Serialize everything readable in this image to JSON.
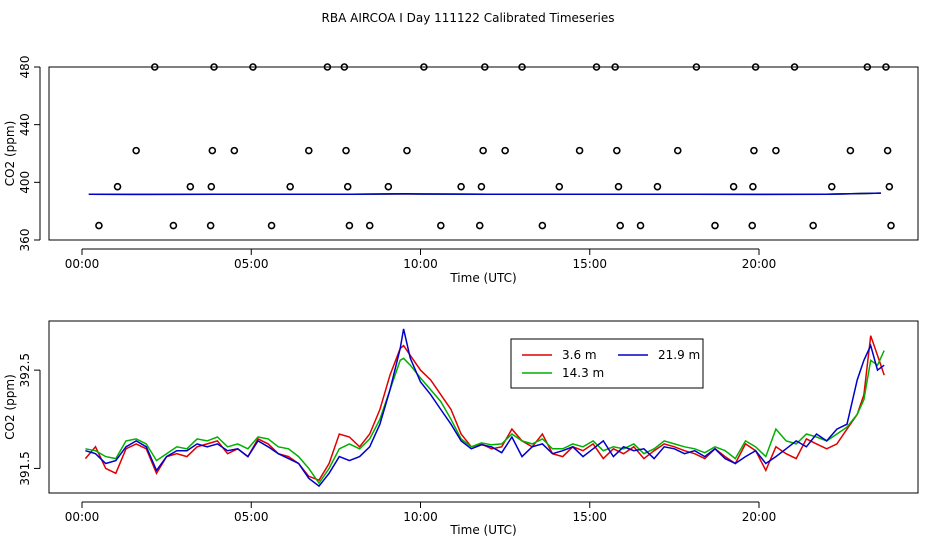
{
  "title": "RBA AIRCOA I  Day 111122  Calibrated Timeseries",
  "colors": {
    "3.6 m": "#e00000",
    "14.3 m": "#00b000",
    "21.9 m": "#0000cc",
    "flags": "#000000"
  },
  "chart_data": [
    {
      "type": "scatter",
      "title": "",
      "xlabel": "Time (UTC)",
      "ylabel": "CO2 (ppm)",
      "xlim": [
        0,
        24
      ],
      "ylim": [
        360,
        480
      ],
      "x_ticks": [
        0,
        5,
        10,
        15,
        20
      ],
      "x_tick_labels": [
        "00:00",
        "05:00",
        "10:00",
        "15:00",
        "20:00"
      ],
      "y_ticks": [
        360,
        400,
        440,
        480
      ],
      "y_tick_labels": [
        "360",
        "400",
        "440",
        "480"
      ],
      "flag_points": [
        [
          0.5,
          370
        ],
        [
          1.05,
          397
        ],
        [
          1.6,
          422
        ],
        [
          2.15,
          480
        ],
        [
          2.7,
          370
        ],
        [
          3.2,
          397
        ],
        [
          3.8,
          370
        ],
        [
          3.82,
          397
        ],
        [
          3.85,
          422
        ],
        [
          3.9,
          480
        ],
        [
          4.5,
          422
        ],
        [
          5.05,
          480
        ],
        [
          5.6,
          370
        ],
        [
          6.15,
          397
        ],
        [
          6.7,
          422
        ],
        [
          7.25,
          480
        ],
        [
          7.75,
          480
        ],
        [
          7.8,
          422
        ],
        [
          7.85,
          397
        ],
        [
          7.9,
          370
        ],
        [
          8.5,
          370
        ],
        [
          9.05,
          397
        ],
        [
          9.6,
          422
        ],
        [
          10.1,
          480
        ],
        [
          10.6,
          370
        ],
        [
          11.2,
          397
        ],
        [
          11.75,
          370
        ],
        [
          11.8,
          397
        ],
        [
          11.85,
          422
        ],
        [
          11.9,
          480
        ],
        [
          12.5,
          422
        ],
        [
          13.0,
          480
        ],
        [
          13.6,
          370
        ],
        [
          14.1,
          397
        ],
        [
          14.7,
          422
        ],
        [
          15.2,
          480
        ],
        [
          15.75,
          480
        ],
        [
          15.8,
          422
        ],
        [
          15.85,
          397
        ],
        [
          15.9,
          370
        ],
        [
          16.5,
          370
        ],
        [
          17.0,
          397
        ],
        [
          17.6,
          422
        ],
        [
          18.15,
          480
        ],
        [
          18.7,
          370
        ],
        [
          19.25,
          397
        ],
        [
          19.8,
          370
        ],
        [
          19.82,
          397
        ],
        [
          19.85,
          422
        ],
        [
          19.9,
          480
        ],
        [
          20.5,
          422
        ],
        [
          21.05,
          480
        ],
        [
          21.6,
          370
        ],
        [
          22.15,
          397
        ],
        [
          22.7,
          422
        ],
        [
          23.2,
          480
        ],
        [
          23.75,
          480
        ],
        [
          23.8,
          422
        ],
        [
          23.85,
          397
        ],
        [
          23.9,
          370
        ]
      ],
      "series": [
        {
          "name": "3.6 m",
          "x": [
            0.2,
            2,
            4,
            6,
            8,
            9.5,
            10,
            12,
            14,
            16,
            18,
            20,
            22,
            23.6
          ],
          "values": [
            391.7,
            391.6,
            391.7,
            391.7,
            391.7,
            392.0,
            391.9,
            391.7,
            391.7,
            391.7,
            391.7,
            391.6,
            391.8,
            392.5
          ]
        },
        {
          "name": "14.3 m",
          "x": [
            0.2,
            2,
            4,
            6,
            8,
            9.5,
            10,
            12,
            14,
            16,
            18,
            20,
            22,
            23.6
          ],
          "values": [
            391.7,
            391.7,
            391.7,
            391.7,
            391.8,
            392.0,
            391.9,
            391.8,
            391.7,
            391.7,
            391.7,
            391.7,
            391.8,
            392.5
          ]
        },
        {
          "name": "21.9 m",
          "x": [
            0.2,
            2,
            4,
            6,
            8,
            9.5,
            10,
            12,
            14,
            16,
            18,
            20,
            22,
            23.6
          ],
          "values": [
            391.7,
            391.6,
            391.7,
            391.7,
            391.7,
            392.1,
            391.9,
            391.7,
            391.7,
            391.7,
            391.7,
            391.6,
            391.8,
            392.5
          ]
        }
      ]
    },
    {
      "type": "line",
      "title": "",
      "xlabel": "Time (UTC)",
      "ylabel": "CO2 (ppm)",
      "xlim": [
        0,
        24
      ],
      "ylim": [
        391.25,
        393.0
      ],
      "x_ticks": [
        0,
        5,
        10,
        15,
        20
      ],
      "x_tick_labels": [
        "00:00",
        "05:00",
        "10:00",
        "15:00",
        "20:00"
      ],
      "y_ticks": [
        391.5,
        392.5
      ],
      "y_tick_labels": [
        "391.5",
        "392.5"
      ],
      "legend": {
        "position": "top-center",
        "entries": [
          "3.6 m",
          "14.3 m",
          "21.9 m"
        ]
      },
      "series": [
        {
          "name": "3.6 m",
          "x": [
            0.1,
            0.4,
            0.7,
            1.0,
            1.3,
            1.6,
            1.9,
            2.2,
            2.5,
            2.8,
            3.1,
            3.4,
            3.7,
            4.0,
            4.3,
            4.6,
            4.9,
            5.2,
            5.5,
            5.8,
            6.1,
            6.4,
            6.7,
            7.0,
            7.3,
            7.6,
            7.9,
            8.2,
            8.5,
            8.8,
            9.1,
            9.4,
            9.5,
            9.7,
            10.0,
            10.3,
            10.6,
            10.9,
            11.2,
            11.5,
            11.8,
            12.1,
            12.4,
            12.7,
            13.0,
            13.3,
            13.6,
            13.9,
            14.2,
            14.5,
            14.8,
            15.1,
            15.4,
            15.7,
            16.0,
            16.3,
            16.6,
            16.9,
            17.2,
            17.5,
            17.8,
            18.1,
            18.4,
            18.7,
            19.0,
            19.3,
            19.6,
            19.9,
            20.2,
            20.5,
            20.8,
            21.1,
            21.4,
            21.7,
            22.0,
            22.3,
            22.6,
            22.9,
            23.1,
            23.3,
            23.5,
            23.7
          ],
          "values": [
            391.6,
            391.72,
            391.5,
            391.45,
            391.7,
            391.75,
            391.7,
            391.45,
            391.62,
            391.65,
            391.62,
            391.72,
            391.75,
            391.78,
            391.65,
            391.7,
            391.62,
            391.8,
            391.75,
            391.65,
            391.62,
            391.55,
            391.42,
            391.38,
            391.55,
            391.85,
            391.82,
            391.72,
            391.85,
            392.1,
            392.45,
            392.72,
            392.75,
            392.65,
            392.5,
            392.4,
            392.25,
            392.1,
            391.85,
            391.72,
            391.75,
            391.7,
            391.72,
            391.9,
            391.78,
            391.72,
            391.85,
            391.65,
            391.62,
            391.72,
            391.68,
            391.75,
            391.6,
            391.7,
            391.65,
            391.72,
            391.6,
            391.68,
            391.75,
            391.72,
            391.68,
            391.65,
            391.6,
            391.7,
            391.62,
            391.55,
            391.75,
            391.68,
            391.48,
            391.72,
            391.65,
            391.6,
            391.8,
            391.75,
            391.7,
            391.75,
            391.9,
            392.05,
            392.25,
            392.85,
            392.65,
            392.45
          ]
        },
        {
          "name": "14.3 m",
          "x": [
            0.1,
            0.4,
            0.7,
            1.0,
            1.3,
            1.6,
            1.9,
            2.2,
            2.5,
            2.8,
            3.1,
            3.4,
            3.7,
            4.0,
            4.3,
            4.6,
            4.9,
            5.2,
            5.5,
            5.8,
            6.1,
            6.4,
            6.7,
            7.0,
            7.3,
            7.6,
            7.9,
            8.2,
            8.5,
            8.8,
            9.1,
            9.4,
            9.5,
            9.7,
            10.0,
            10.3,
            10.6,
            10.9,
            11.2,
            11.5,
            11.8,
            12.1,
            12.4,
            12.7,
            13.0,
            13.3,
            13.6,
            13.9,
            14.2,
            14.5,
            14.8,
            15.1,
            15.4,
            15.7,
            16.0,
            16.3,
            16.6,
            16.9,
            17.2,
            17.5,
            17.8,
            18.1,
            18.4,
            18.7,
            19.0,
            19.3,
            19.6,
            19.9,
            20.2,
            20.5,
            20.8,
            21.1,
            21.4,
            21.7,
            22.0,
            22.3,
            22.6,
            22.9,
            23.1,
            23.3,
            23.5,
            23.7
          ],
          "values": [
            391.7,
            391.68,
            391.62,
            391.6,
            391.78,
            391.8,
            391.75,
            391.58,
            391.65,
            391.72,
            391.7,
            391.8,
            391.78,
            391.82,
            391.72,
            391.75,
            391.7,
            391.82,
            391.8,
            391.72,
            391.7,
            391.62,
            391.5,
            391.35,
            391.5,
            391.7,
            391.75,
            391.7,
            391.8,
            392.0,
            392.3,
            392.6,
            392.62,
            392.55,
            392.42,
            392.3,
            392.18,
            392.0,
            391.8,
            391.72,
            391.76,
            391.74,
            391.75,
            391.85,
            391.78,
            391.75,
            391.8,
            391.7,
            391.7,
            391.75,
            391.72,
            391.78,
            391.68,
            391.72,
            391.7,
            391.75,
            391.65,
            391.7,
            391.78,
            391.75,
            391.72,
            391.7,
            391.66,
            391.72,
            391.68,
            391.6,
            391.78,
            391.72,
            391.62,
            391.9,
            391.78,
            391.75,
            391.85,
            391.82,
            391.78,
            391.85,
            391.92,
            392.05,
            392.2,
            392.6,
            392.55,
            392.7
          ]
        },
        {
          "name": "21.9 m",
          "x": [
            0.1,
            0.4,
            0.7,
            1.0,
            1.3,
            1.6,
            1.9,
            2.2,
            2.5,
            2.8,
            3.1,
            3.4,
            3.7,
            4.0,
            4.3,
            4.6,
            4.9,
            5.2,
            5.5,
            5.8,
            6.1,
            6.4,
            6.7,
            7.0,
            7.3,
            7.6,
            7.9,
            8.2,
            8.5,
            8.8,
            9.1,
            9.4,
            9.5,
            9.7,
            10.0,
            10.3,
            10.6,
            10.9,
            11.2,
            11.5,
            11.8,
            12.1,
            12.4,
            12.7,
            13.0,
            13.3,
            13.6,
            13.9,
            14.2,
            14.5,
            14.8,
            15.1,
            15.4,
            15.7,
            16.0,
            16.3,
            16.6,
            16.9,
            17.2,
            17.5,
            17.8,
            18.1,
            18.4,
            18.7,
            19.0,
            19.3,
            19.6,
            19.9,
            20.2,
            20.5,
            20.8,
            21.1,
            21.4,
            21.7,
            22.0,
            22.3,
            22.6,
            22.9,
            23.1,
            23.3,
            23.5,
            23.7
          ],
          "values": [
            391.68,
            391.65,
            391.55,
            391.58,
            391.72,
            391.78,
            391.72,
            391.48,
            391.62,
            391.68,
            391.68,
            391.75,
            391.72,
            391.75,
            391.68,
            391.7,
            391.62,
            391.78,
            391.72,
            391.65,
            391.6,
            391.55,
            391.4,
            391.32,
            391.45,
            391.62,
            391.58,
            391.62,
            391.72,
            391.95,
            392.3,
            392.72,
            392.92,
            392.62,
            392.38,
            392.25,
            392.1,
            391.95,
            391.78,
            391.7,
            391.74,
            391.72,
            391.66,
            391.82,
            391.62,
            391.72,
            391.75,
            391.65,
            391.68,
            391.72,
            391.62,
            391.7,
            391.78,
            391.62,
            391.72,
            391.68,
            391.7,
            391.6,
            391.72,
            391.7,
            391.65,
            391.68,
            391.62,
            391.7,
            391.6,
            391.55,
            391.62,
            391.68,
            391.55,
            391.62,
            391.7,
            391.78,
            391.72,
            391.85,
            391.78,
            391.9,
            391.95,
            392.4,
            392.6,
            392.75,
            392.5,
            392.55
          ]
        }
      ]
    }
  ]
}
